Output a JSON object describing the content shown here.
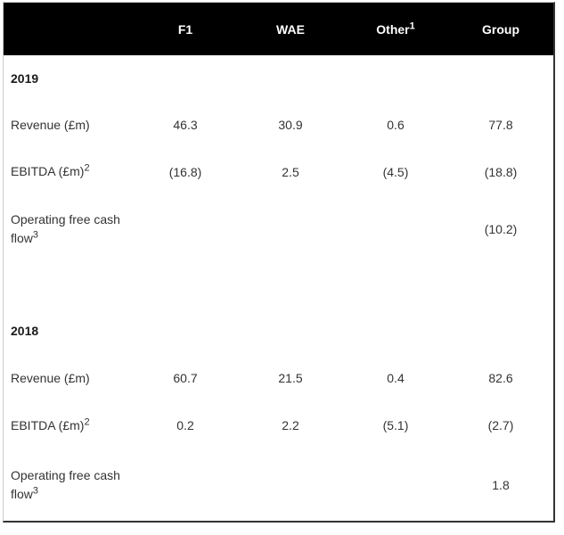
{
  "header": {
    "empty": "",
    "f1": "F1",
    "wae": "WAE",
    "other": "Other",
    "other_sup": "1",
    "group": "Group"
  },
  "sections": [
    {
      "year": "2019",
      "rows": [
        {
          "label": "Revenue (£m)",
          "label_sup": "",
          "values": [
            "46.3",
            "30.9",
            "0.6",
            "77.8"
          ]
        },
        {
          "label": "EBITDA (£m)",
          "label_sup": "2",
          "values": [
            "(16.8)",
            "2.5",
            "(4.5)",
            "(18.8)"
          ]
        },
        {
          "label": "Operating free cash flow",
          "label_sup": "3",
          "values": [
            "",
            "",
            "",
            "(10.2)"
          ]
        }
      ]
    },
    {
      "year": "2018",
      "rows": [
        {
          "label": "Revenue (£m)",
          "label_sup": "",
          "values": [
            "60.7",
            "21.5",
            "0.4",
            "82.6"
          ]
        },
        {
          "label": "EBITDA (£m)",
          "label_sup": "2",
          "values": [
            "0.2",
            "2.2",
            "(5.1)",
            "(2.7)"
          ]
        },
        {
          "label": "Operating free cash flow",
          "label_sup": "3",
          "values": [
            "",
            "",
            "",
            "1.8"
          ]
        }
      ]
    }
  ],
  "colors": {
    "header_bg": "#000000",
    "header_text": "#ffffff",
    "body_text": "#333333",
    "border_light": "#cbcbcb",
    "border_dark": "#333333"
  }
}
